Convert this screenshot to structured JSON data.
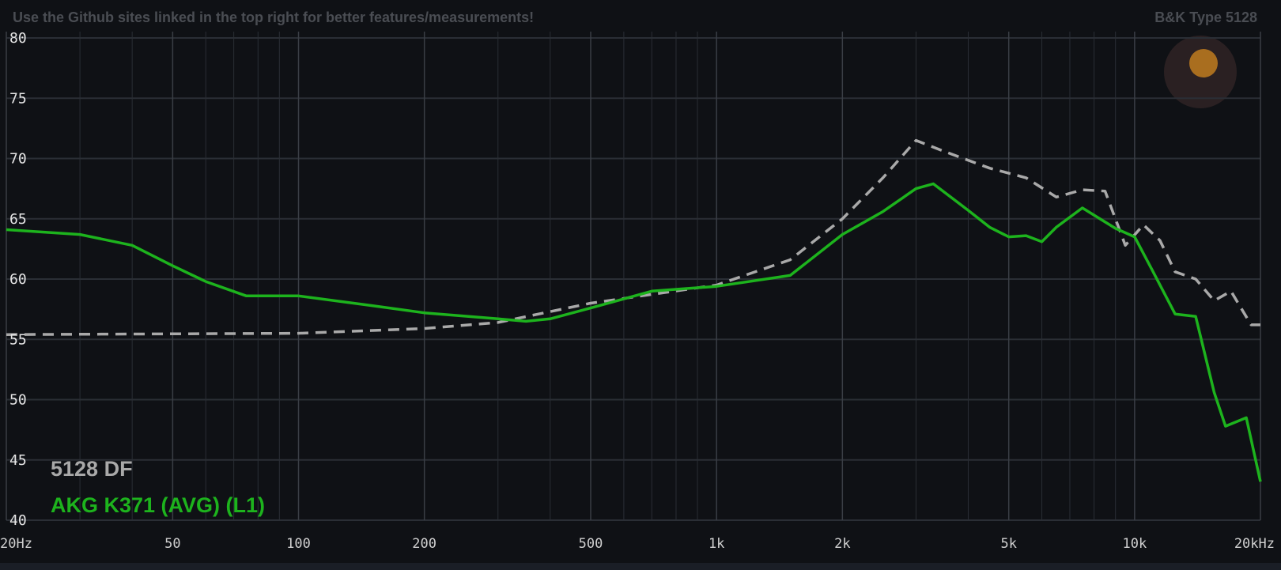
{
  "chart_data": {
    "type": "line",
    "title": "Use the Github sites linked in the top right for better features/measurements!",
    "subtitle": "B&K Type 5128",
    "xscale": "log",
    "grid": true,
    "xlim": [
      20,
      20000
    ],
    "ylim": [
      40,
      80
    ],
    "xticks": [
      {
        "value": 20,
        "label": "20Hz"
      },
      50,
      100,
      200,
      500,
      {
        "value": 1000,
        "label": "1k"
      },
      {
        "value": 2000,
        "label": "2k"
      },
      {
        "value": 5000,
        "label": "5k"
      },
      {
        "value": 10000,
        "label": "10k"
      },
      {
        "value": 20000,
        "label": "20kHz"
      }
    ],
    "xgrid": [
      30,
      40,
      60,
      70,
      80,
      90,
      300,
      400,
      600,
      700,
      800,
      900,
      3000,
      4000,
      6000,
      7000,
      8000,
      9000
    ],
    "yticks": [
      40,
      45,
      50,
      55,
      60,
      65,
      70,
      75,
      80
    ],
    "series": [
      {
        "name": "5128 DF",
        "color": "#a9a9a9",
        "dashed": true,
        "x": [
          20,
          100,
          200,
          300,
          500,
          1000,
          1500,
          2000,
          2500,
          3000,
          3500,
          4500,
          5500,
          6500,
          7500,
          8500,
          9500,
          10500,
          11500,
          12500,
          14000,
          15500,
          17000,
          19000,
          20000
        ],
        "values": [
          55.4,
          55.5,
          55.9,
          56.4,
          58.0,
          59.5,
          61.6,
          65.0,
          68.4,
          71.5,
          70.6,
          69.2,
          68.4,
          66.8,
          67.4,
          67.3,
          62.8,
          64.5,
          63.2,
          60.6,
          60.0,
          58.2,
          59.0,
          56.2,
          56.2
        ]
      },
      {
        "name": "AKG K371 (AVG) (L1)",
        "color": "#1db31d",
        "dashed": false,
        "x": [
          20,
          30,
          40,
          50,
          60,
          75,
          100,
          150,
          200,
          300,
          350,
          400,
          500,
          700,
          1000,
          1500,
          2000,
          2500,
          3000,
          3300,
          4000,
          4500,
          5000,
          5500,
          6000,
          6500,
          7500,
          9000,
          10000,
          11000,
          12500,
          14000,
          15500,
          16500,
          18500,
          20000
        ],
        "values": [
          64.1,
          63.7,
          62.8,
          61.1,
          59.8,
          58.6,
          58.6,
          57.8,
          57.2,
          56.7,
          56.5,
          56.7,
          57.6,
          59.0,
          59.4,
          60.3,
          63.7,
          65.6,
          67.5,
          67.9,
          65.7,
          64.3,
          63.5,
          63.6,
          63.1,
          64.3,
          65.9,
          64.2,
          63.5,
          60.8,
          57.1,
          56.9,
          50.6,
          47.8,
          48.5,
          43.2
        ]
      }
    ]
  }
}
